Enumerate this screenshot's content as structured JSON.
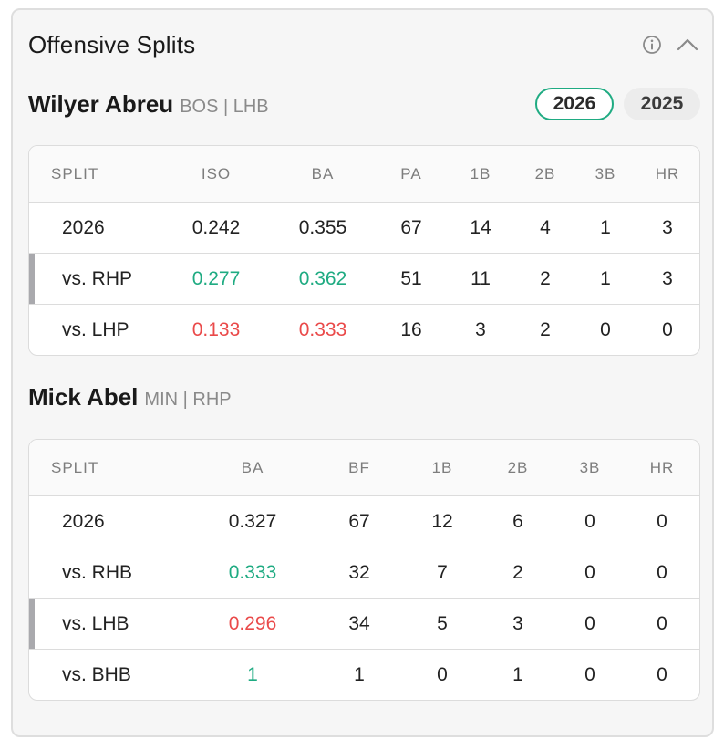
{
  "panel": {
    "title": "Offensive Splits",
    "info_icon": "info-circle-icon",
    "collapse_icon": "chevron-up-icon"
  },
  "colors": {
    "accent": "#1fab82",
    "good": "#1fab82",
    "bad": "#ea4a4a",
    "marker": "#a9a9ad"
  },
  "years": [
    {
      "label": "2026",
      "active": true
    },
    {
      "label": "2025",
      "active": false
    }
  ],
  "batter": {
    "name": "Wilyer Abreu",
    "meta": "BOS | LHB",
    "columns": [
      "SPLIT",
      "ISO",
      "BA",
      "PA",
      "1B",
      "2B",
      "3B",
      "HR"
    ],
    "rows": [
      {
        "split": "2026",
        "iso": "0.242",
        "ba": "0.355",
        "pa": "67",
        "single": "14",
        "double": "4",
        "triple": "1",
        "hr": "3"
      },
      {
        "split": "vs. RHP",
        "iso": "0.277",
        "ba": "0.362",
        "pa": "51",
        "single": "11",
        "double": "2",
        "triple": "1",
        "hr": "3"
      },
      {
        "split": "vs. LHP",
        "iso": "0.133",
        "ba": "0.333",
        "pa": "16",
        "single": "3",
        "double": "2",
        "triple": "0",
        "hr": "0"
      }
    ]
  },
  "pitcher": {
    "name": "Mick Abel",
    "meta": "MIN | RHP",
    "columns": [
      "SPLIT",
      "BA",
      "BF",
      "1B",
      "2B",
      "3B",
      "HR"
    ],
    "rows": [
      {
        "split": "2026",
        "ba": "0.327",
        "bf": "67",
        "single": "12",
        "double": "6",
        "triple": "0",
        "hr": "0"
      },
      {
        "split": "vs. RHB",
        "ba": "0.333",
        "bf": "32",
        "single": "7",
        "double": "2",
        "triple": "0",
        "hr": "0"
      },
      {
        "split": "vs. LHB",
        "ba": "0.296",
        "bf": "34",
        "single": "5",
        "double": "3",
        "triple": "0",
        "hr": "0"
      },
      {
        "split": "vs. BHB",
        "ba": "1",
        "bf": "1",
        "single": "0",
        "double": "1",
        "triple": "0",
        "hr": "0"
      }
    ]
  }
}
